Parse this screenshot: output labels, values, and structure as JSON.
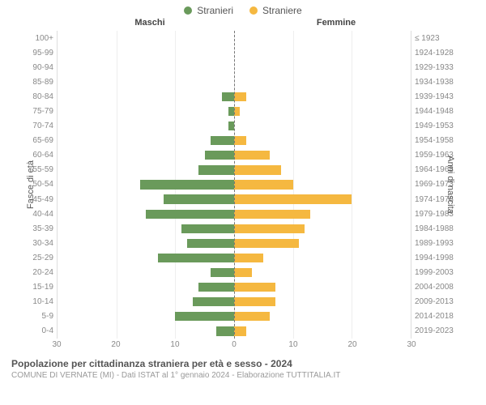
{
  "legend": {
    "male": {
      "label": "Stranieri",
      "color": "#6a9a5b"
    },
    "female": {
      "label": "Straniere",
      "color": "#f5b840"
    }
  },
  "headers": {
    "male": "Maschi",
    "female": "Femmine"
  },
  "axis_titles": {
    "left": "Fasce di età",
    "right": "Anni di nascita"
  },
  "chart": {
    "type": "population-pyramid",
    "xlim": 30,
    "xticks": [
      30,
      20,
      10,
      0,
      10,
      20,
      30
    ],
    "grid_color": "#eeeeee",
    "center_line_color": "#777777",
    "background_color": "#ffffff",
    "bar_height_pct": 70,
    "rows": [
      {
        "age": "100+",
        "birth": "≤ 1923",
        "m": 0,
        "f": 0
      },
      {
        "age": "95-99",
        "birth": "1924-1928",
        "m": 0,
        "f": 0
      },
      {
        "age": "90-94",
        "birth": "1929-1933",
        "m": 0,
        "f": 0
      },
      {
        "age": "85-89",
        "birth": "1934-1938",
        "m": 0,
        "f": 0
      },
      {
        "age": "80-84",
        "birth": "1939-1943",
        "m": 2,
        "f": 2
      },
      {
        "age": "75-79",
        "birth": "1944-1948",
        "m": 1,
        "f": 1
      },
      {
        "age": "70-74",
        "birth": "1949-1953",
        "m": 1,
        "f": 0
      },
      {
        "age": "65-69",
        "birth": "1954-1958",
        "m": 4,
        "f": 2
      },
      {
        "age": "60-64",
        "birth": "1959-1963",
        "m": 5,
        "f": 6
      },
      {
        "age": "55-59",
        "birth": "1964-1968",
        "m": 6,
        "f": 8
      },
      {
        "age": "50-54",
        "birth": "1969-1973",
        "m": 16,
        "f": 10
      },
      {
        "age": "45-49",
        "birth": "1974-1978",
        "m": 12,
        "f": 20
      },
      {
        "age": "40-44",
        "birth": "1979-1983",
        "m": 15,
        "f": 13
      },
      {
        "age": "35-39",
        "birth": "1984-1988",
        "m": 9,
        "f": 12
      },
      {
        "age": "30-34",
        "birth": "1989-1993",
        "m": 8,
        "f": 11
      },
      {
        "age": "25-29",
        "birth": "1994-1998",
        "m": 13,
        "f": 5
      },
      {
        "age": "20-24",
        "birth": "1999-2003",
        "m": 4,
        "f": 3
      },
      {
        "age": "15-19",
        "birth": "2004-2008",
        "m": 6,
        "f": 7
      },
      {
        "age": "10-14",
        "birth": "2009-2013",
        "m": 7,
        "f": 7
      },
      {
        "age": "5-9",
        "birth": "2014-2018",
        "m": 10,
        "f": 6
      },
      {
        "age": "0-4",
        "birth": "2019-2023",
        "m": 3,
        "f": 2
      }
    ]
  },
  "footer": {
    "title": "Popolazione per cittadinanza straniera per età e sesso - 2024",
    "subtitle": "COMUNE DI VERNATE (MI) - Dati ISTAT al 1° gennaio 2024 - Elaborazione TUTTITALIA.IT"
  }
}
